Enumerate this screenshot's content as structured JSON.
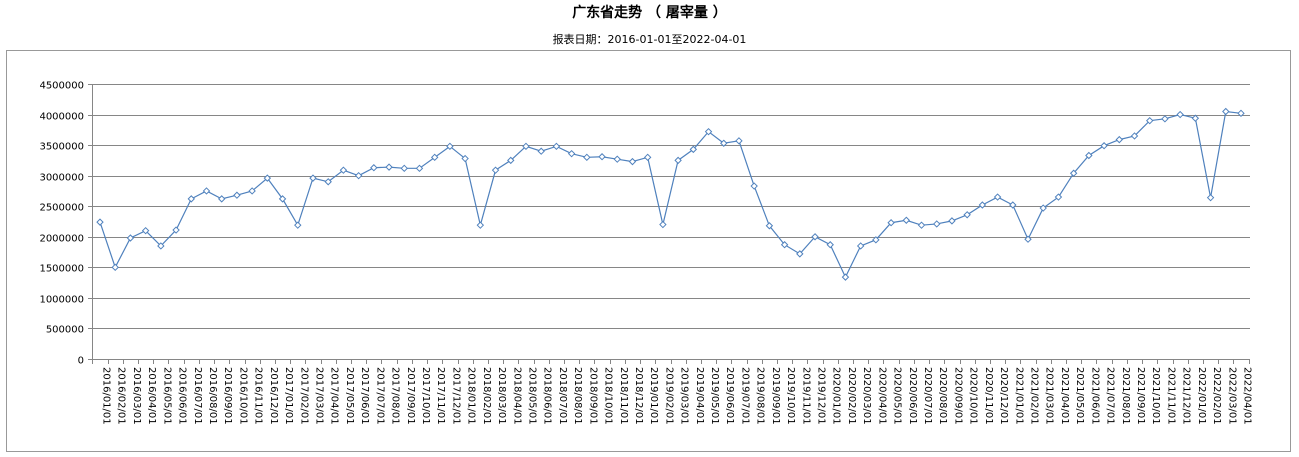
{
  "chart_data": {
    "type": "line",
    "title": "广东省走势 （ 屠宰量 ）",
    "subtitle": "报表日期：2016-01-01至2022-04-01",
    "xlabel": "",
    "ylabel": "",
    "ylim": [
      0,
      4500000
    ],
    "yticks": [
      0,
      500000,
      1000000,
      1500000,
      2000000,
      2500000,
      3000000,
      3500000,
      4000000,
      4500000
    ],
    "grid": true,
    "legend": "none",
    "color": "#4f81bd",
    "marker": "diamond",
    "categories": [
      "2016/01/01",
      "2016/02/01",
      "2016/03/01",
      "2016/04/01",
      "2016/05/01",
      "2016/06/01",
      "2016/07/01",
      "2016/08/01",
      "2016/09/01",
      "2016/10/01",
      "2016/11/01",
      "2016/12/01",
      "2017/01/01",
      "2017/02/01",
      "2017/03/01",
      "2017/04/01",
      "2017/05/01",
      "2017/06/01",
      "2017/07/01",
      "2017/08/01",
      "2017/09/01",
      "2017/10/01",
      "2017/11/01",
      "2017/12/01",
      "2018/01/01",
      "2018/02/01",
      "2018/03/01",
      "2018/04/01",
      "2018/05/01",
      "2018/06/01",
      "2018/07/01",
      "2018/08/01",
      "2018/09/01",
      "2018/10/01",
      "2018/11/01",
      "2018/12/01",
      "2019/01/01",
      "2019/02/01",
      "2019/03/01",
      "2019/04/01",
      "2019/05/01",
      "2019/06/01",
      "2019/07/01",
      "2019/08/01",
      "2019/09/01",
      "2019/10/01",
      "2019/11/01",
      "2019/12/01",
      "2020/01/01",
      "2020/02/01",
      "2020/03/01",
      "2020/04/01",
      "2020/05/01",
      "2020/06/01",
      "2020/07/01",
      "2020/08/01",
      "2020/09/01",
      "2020/10/01",
      "2020/11/01",
      "2020/12/01",
      "2021/01/01",
      "2021/02/01",
      "2021/03/01",
      "2021/04/01",
      "2021/05/01",
      "2021/06/01",
      "2021/07/01",
      "2021/08/01",
      "2021/09/01",
      "2021/10/01",
      "2021/11/01",
      "2021/12/01",
      "2022/01/01",
      "2022/02/01",
      "2022/03/01",
      "2022/04/01"
    ],
    "values": [
      2240000,
      1500000,
      1980000,
      2100000,
      1850000,
      2110000,
      2620000,
      2750000,
      2620000,
      2680000,
      2750000,
      2960000,
      2620000,
      2190000,
      2960000,
      2900000,
      3090000,
      3000000,
      3130000,
      3140000,
      3120000,
      3120000,
      3300000,
      3480000,
      3280000,
      2190000,
      3090000,
      3250000,
      3480000,
      3400000,
      3480000,
      3360000,
      3300000,
      3310000,
      3270000,
      3230000,
      3300000,
      2200000,
      3250000,
      3430000,
      3720000,
      3530000,
      3570000,
      2830000,
      2180000,
      1870000,
      1720000,
      2000000,
      1870000,
      1340000,
      1850000,
      1950000,
      2230000,
      2270000,
      2190000,
      2210000,
      2260000,
      2360000,
      2520000,
      2650000,
      2520000,
      1960000,
      2470000,
      2650000,
      3040000,
      3330000,
      3490000,
      3590000,
      3650000,
      3900000,
      3930000,
      4000000,
      3940000,
      2640000,
      4050000,
      4020000
    ]
  }
}
